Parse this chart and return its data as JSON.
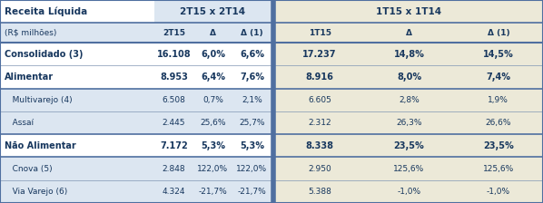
{
  "title_left": "Receita Líquida",
  "subtitle_unit": "(R$ milhões)",
  "header_group1": "2T15 x 2T14",
  "header_group2": "1T15 x 1T14",
  "rows": [
    {
      "label": "Consolidado (3)",
      "label_sup": true,
      "vals": [
        "16.108",
        "6,0%",
        "6,6%",
        "17.237",
        "14,8%",
        "14,5%"
      ],
      "bold": true
    },
    {
      "label": "Alimentar",
      "label_sup": false,
      "vals": [
        "8.953",
        "6,4%",
        "7,6%",
        "8.916",
        "8,0%",
        "7,4%"
      ],
      "bold": true
    },
    {
      "label": "   Multivarejo (4)",
      "label_sup": true,
      "vals": [
        "6.508",
        "0,7%",
        "2,1%",
        "6.605",
        "2,8%",
        "1,9%"
      ],
      "bold": false
    },
    {
      "label": "   Assaí",
      "label_sup": false,
      "vals": [
        "2.445",
        "25,6%",
        "25,7%",
        "2.312",
        "26,3%",
        "26,6%"
      ],
      "bold": false
    },
    {
      "label": "Não Alimentar",
      "label_sup": false,
      "vals": [
        "7.172",
        "5,3%",
        "5,3%",
        "8.338",
        "23,5%",
        "23,5%"
      ],
      "bold": true
    },
    {
      "label": "   Cnova (5)",
      "label_sup": true,
      "vals": [
        "2.848",
        "122,0%",
        "122,0%",
        "2.950",
        "125,6%",
        "125,6%"
      ],
      "bold": false
    },
    {
      "label": "   Via Varejo (6)",
      "label_sup": true,
      "vals": [
        "4.324",
        "-21,7%",
        "-21,7%",
        "5.388",
        "-1,0%",
        "-1,0%"
      ],
      "bold": false
    }
  ],
  "bg_header_left": "#ffffff",
  "bg_header_mid": "#dce6f1",
  "bg_header_right": "#ece9d8",
  "bg_subheader": "#dce6f1",
  "bg_subheader_right": "#ece9d8",
  "bg_white": "#ffffff",
  "bg_light_left": "#dce6f1",
  "bg_light_right": "#ece9d8",
  "text_color": "#17375e",
  "sep_color": "#4f6fa0",
  "border_dark": "#4f6fa0",
  "border_light": "#8096b4",
  "fig_width": 5.98,
  "fig_height": 2.24,
  "dpi": 100
}
